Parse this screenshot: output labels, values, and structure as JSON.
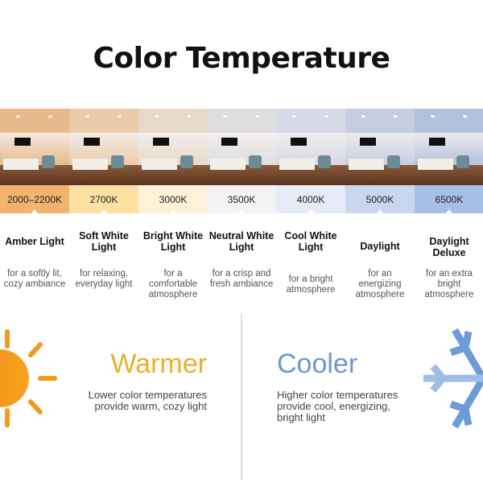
{
  "title": "Color Temperature",
  "columns": [
    {
      "kelvin": "2000–2200K",
      "name": "Amber Light",
      "desc": "for a softly lit, cozy ambiance",
      "band": "#f2b36c",
      "tint": "#e8b98a"
    },
    {
      "kelvin": "2700K",
      "name": "Soft White Light",
      "desc": "for relaxing, everyday light",
      "band": "#fde0a4",
      "tint": "#eccbab"
    },
    {
      "kelvin": "3000K",
      "name": "Bright White Light",
      "desc": "for a comfortable atmosphere",
      "band": "#fdf1d8",
      "tint": "#e9d9c9"
    },
    {
      "kelvin": "3500K",
      "name": "Neutral White Light",
      "desc": "for a crisp and fresh ambiance",
      "band": "#f3f3f3",
      "tint": "#e0dde0"
    },
    {
      "kelvin": "4000K",
      "name": "Cool White Light",
      "desc": "for a bright atmosphere",
      "band": "#e5ebf7",
      "tint": "#d6d9e6"
    },
    {
      "kelvin": "5000K",
      "name": "Daylight",
      "desc": "for an energizing atmosphere",
      "band": "#c9d7ee",
      "tint": "#c5cde0"
    },
    {
      "kelvin": "6500K",
      "name": "Daylight Deluxe",
      "desc": "for an extra bright atmosphere",
      "band": "#a6bfe6",
      "tint": "#b3c2dc"
    }
  ],
  "warmer": {
    "heading": "Warmer",
    "text": "Lower color temperatures provide warm, cozy light",
    "color": "#e9b12b",
    "icon": "sun-icon"
  },
  "cooler": {
    "heading": "Cooler",
    "text": "Higher color temperatures provide cool, energizing, bright light",
    "color": "#6f96cf",
    "icon": "snowflake-icon"
  }
}
